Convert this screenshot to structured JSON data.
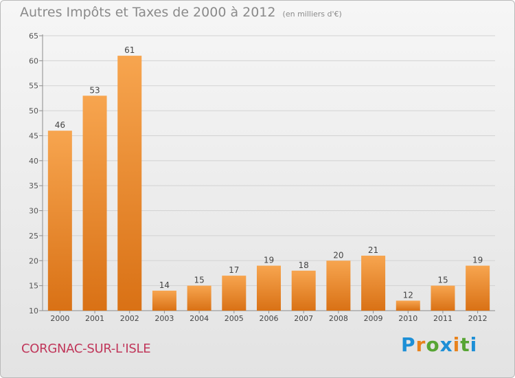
{
  "header": {
    "title": "Autres Impôts et Taxes de 2000 à 2012",
    "unit": "(en milliers d'€)"
  },
  "footer": {
    "town": "CORGNAC-SUR-L'ISLE",
    "logo": "Proxiti"
  },
  "colors": {
    "bar_top": "#f7a54f",
    "bar_bottom": "#d97115",
    "town": "#c0365a",
    "logo_letters": [
      "#1d8fd6",
      "#e8821c",
      "#57a534",
      "#1d8fd6",
      "#e8821c",
      "#57a534",
      "#1d8fd6"
    ]
  },
  "chart_data": {
    "type": "bar",
    "categories": [
      "2000",
      "2001",
      "2002",
      "2003",
      "2004",
      "2005",
      "2006",
      "2007",
      "2008",
      "2009",
      "2010",
      "2011",
      "2012"
    ],
    "values": [
      46,
      53,
      61,
      14,
      15,
      17,
      19,
      18,
      20,
      21,
      12,
      15,
      19
    ],
    "title": "Autres Impôts et Taxes de 2000 à 2012",
    "xlabel": "",
    "ylabel": "",
    "ylim": [
      10,
      65
    ],
    "yticks": [
      10,
      15,
      20,
      25,
      30,
      35,
      40,
      45,
      50,
      55,
      60,
      65
    ],
    "grid": true,
    "data_labels": true
  }
}
